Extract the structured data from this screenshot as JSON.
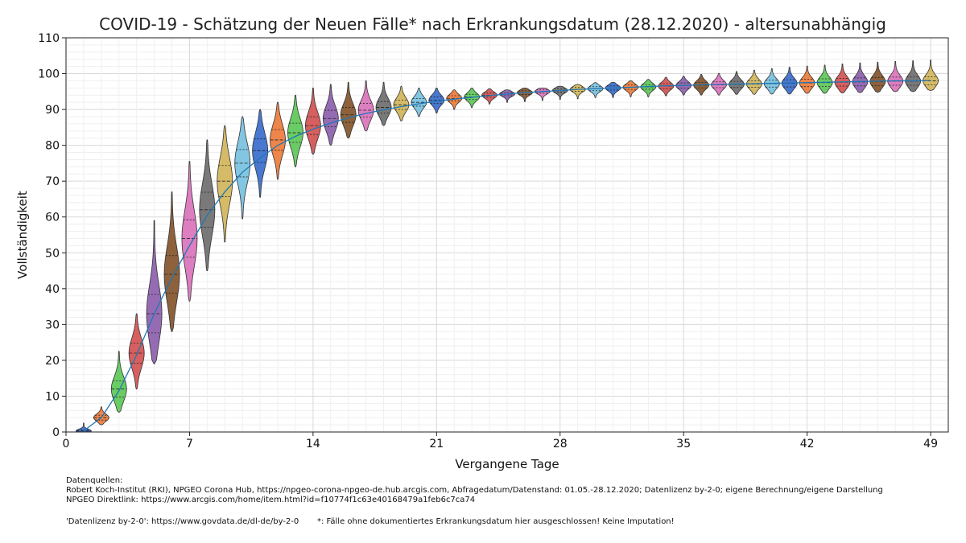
{
  "chart_data": {
    "type": "violin",
    "title": "COVID-19 - Schätzung der Neuen Fälle* nach Erkrankungsdatum (28.12.2020) - altersunabhängig",
    "xlabel": "Vergangene Tage",
    "ylabel": "Vollständigkeit",
    "xlim": [
      0,
      50
    ],
    "ylim": [
      0,
      110
    ],
    "xticks": [
      0,
      7,
      14,
      21,
      28,
      35,
      42,
      49
    ],
    "yticks": [
      0,
      10,
      20,
      30,
      40,
      50,
      60,
      70,
      80,
      90,
      100,
      110
    ],
    "grid": true,
    "days": [
      1,
      2,
      3,
      4,
      5,
      6,
      7,
      8,
      9,
      10,
      11,
      12,
      13,
      14,
      15,
      16,
      17,
      18,
      19,
      20,
      21,
      22,
      23,
      24,
      25,
      26,
      27,
      28,
      29,
      30,
      31,
      32,
      33,
      34,
      35,
      36,
      37,
      38,
      39,
      40,
      41,
      42,
      43,
      44,
      45,
      46,
      47,
      48,
      49
    ],
    "violins": {
      "median": [
        0.3,
        4,
        12,
        22,
        33,
        44,
        54,
        62,
        70,
        75,
        78.5,
        81.5,
        83.5,
        85.5,
        87.5,
        88.5,
        89.8,
        90.6,
        91.3,
        92,
        92.6,
        93.1,
        93.5,
        94,
        94.3,
        94.7,
        95,
        95.3,
        95.6,
        95.8,
        96,
        96.2,
        96.3,
        96.5,
        96.7,
        96.8,
        96.9,
        97,
        97.1,
        97.2,
        97.3,
        97.4,
        97.5,
        97.6,
        97.7,
        97.8,
        97.9,
        97.9,
        98
      ],
      "min": [
        0,
        2,
        5.5,
        12,
        19,
        28,
        36.5,
        45,
        53,
        59.5,
        65.5,
        70.5,
        74,
        77.5,
        80,
        82,
        84,
        85.5,
        86.8,
        88,
        89,
        90,
        90.5,
        91.5,
        92,
        92.2,
        92.5,
        92.8,
        93,
        93.3,
        93.3,
        93.5,
        93.5,
        93.8,
        94,
        94,
        94,
        94.2,
        94.2,
        94.3,
        94.3,
        94.5,
        94.5,
        94.6,
        94.7,
        94.8,
        95,
        95,
        95.3
      ],
      "max": [
        2.5,
        7,
        22.5,
        33,
        59,
        67,
        75.5,
        81.5,
        85.5,
        88,
        90,
        92,
        94,
        96,
        97,
        97.6,
        98,
        97.6,
        96.5,
        96,
        96,
        95.5,
        96,
        95.8,
        95.5,
        96,
        96,
        96.5,
        97,
        97.5,
        97.6,
        98,
        98.4,
        99,
        99.3,
        99.8,
        100.1,
        100.6,
        101,
        101.4,
        101.8,
        102.1,
        102.4,
        102.7,
        103,
        103.2,
        103.4,
        103.6,
        103.8
      ]
    },
    "fit_line": {
      "color": "#1f77b4",
      "x": [
        1,
        2,
        3,
        4,
        5,
        6,
        7,
        8,
        9,
        10,
        11,
        12,
        13,
        14,
        15,
        16,
        17,
        18,
        19,
        20,
        21,
        22,
        23,
        24,
        25,
        26,
        27,
        28,
        29,
        30,
        31,
        32,
        33,
        34,
        35,
        36,
        37,
        38,
        39,
        40,
        41,
        42,
        43,
        44,
        45,
        46,
        47,
        48,
        49
      ],
      "y": [
        0.3,
        4,
        11.5,
        21.5,
        33,
        43,
        52,
        60.5,
        67,
        72.5,
        76.5,
        80,
        82.5,
        84.5,
        86.2,
        87.7,
        88.9,
        89.9,
        90.8,
        91.6,
        92.3,
        92.9,
        93.4,
        93.9,
        94.3,
        94.7,
        95,
        95.3,
        95.6,
        95.8,
        96,
        96.2,
        96.4,
        96.6,
        96.7,
        96.9,
        97,
        97.1,
        97.2,
        97.3,
        97.4,
        97.5,
        97.6,
        97.7,
        97.8,
        97.9,
        98,
        98,
        98.1
      ]
    },
    "palette": [
      "#4878d0",
      "#ee854a",
      "#6acc64",
      "#d65f5f",
      "#956cb4",
      "#8c613c",
      "#dc7ec0",
      "#797979",
      "#d5bb67",
      "#82c6e2"
    ]
  },
  "footer": {
    "sources_title": "Datenquellen:",
    "sources_line1": "Robert Koch-Institut (RKI), NPGEO Corona Hub, https://npgeo-corona-npgeo-de.hub.arcgis.com, Abfragedatum/Datenstand: 01.05.-28.12.2020; Datenlizenz by-2-0; eigene Berechnung/eigene Darstellung",
    "sources_line2": "NPGEO Direktlink: https://www.arcgis.com/home/item.html?id=f10774f1c63e40168479a1feb6c7ca74",
    "license": "'Datenlizenz by-2-0': https://www.govdata.de/dl-de/by-2-0",
    "note": "*: Fälle ohne dokumentiertes Erkrankungsdatum hier ausgeschlossen! Keine Imputation!"
  }
}
